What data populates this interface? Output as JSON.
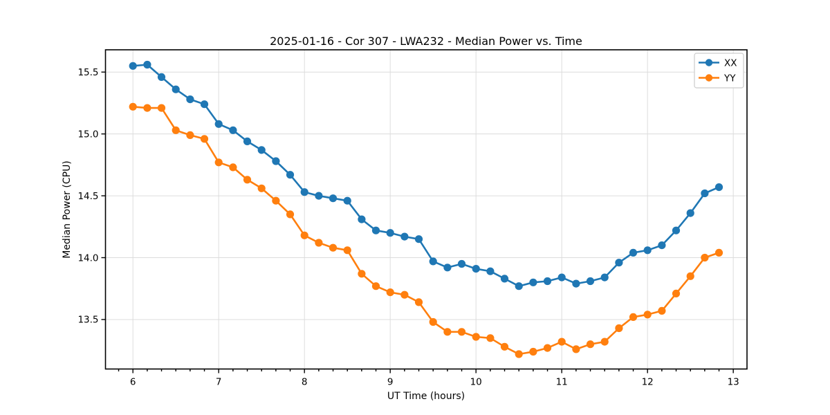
{
  "chart_data": {
    "type": "line",
    "title": "2025-01-16 - Cor 307 - LWA232 - Median Power vs. Time",
    "xlabel": "UT Time (hours)",
    "ylabel": "Median Power (CPU)",
    "grid": true,
    "legend_position": "upper right",
    "xlim": [
      5.68,
      13.16
    ],
    "ylim": [
      13.1,
      15.68
    ],
    "xticks": [
      6,
      7,
      8,
      9,
      10,
      11,
      12,
      13
    ],
    "xtick_labels": [
      "6",
      "7",
      "8",
      "9",
      "10",
      "11",
      "12",
      "13"
    ],
    "x_minor_step": 0.16667,
    "yticks": [
      13.5,
      14.0,
      14.5,
      15.0,
      15.5
    ],
    "ytick_labels": [
      "13.5",
      "14.0",
      "14.5",
      "15.0",
      "15.5"
    ],
    "x": [
      6.0,
      6.167,
      6.333,
      6.5,
      6.667,
      6.833,
      7.0,
      7.167,
      7.333,
      7.5,
      7.667,
      7.833,
      8.0,
      8.167,
      8.333,
      8.5,
      8.667,
      8.833,
      9.0,
      9.167,
      9.333,
      9.5,
      9.667,
      9.833,
      10.0,
      10.167,
      10.333,
      10.5,
      10.667,
      10.833,
      11.0,
      11.167,
      11.333,
      11.5,
      11.667,
      11.833,
      12.0,
      12.167,
      12.333,
      12.5,
      12.667,
      12.833
    ],
    "series": [
      {
        "name": "XX",
        "color": "#1f77b4",
        "values": [
          15.55,
          15.56,
          15.46,
          15.36,
          15.28,
          15.24,
          15.08,
          15.03,
          14.94,
          14.87,
          14.78,
          14.67,
          14.53,
          14.5,
          14.48,
          14.46,
          14.31,
          14.22,
          14.2,
          14.17,
          14.15,
          13.97,
          13.92,
          13.95,
          13.91,
          13.89,
          13.83,
          13.77,
          13.8,
          13.81,
          13.84,
          13.79,
          13.81,
          13.84,
          13.96,
          14.04,
          14.06,
          14.1,
          14.22,
          14.36,
          14.52,
          14.57
        ]
      },
      {
        "name": "YY",
        "color": "#ff7f0e",
        "values": [
          15.22,
          15.21,
          15.21,
          15.03,
          14.99,
          14.96,
          14.77,
          14.73,
          14.63,
          14.56,
          14.46,
          14.35,
          14.18,
          14.12,
          14.08,
          14.06,
          13.87,
          13.77,
          13.72,
          13.7,
          13.64,
          13.48,
          13.4,
          13.4,
          13.36,
          13.35,
          13.28,
          13.22,
          13.24,
          13.27,
          13.32,
          13.26,
          13.3,
          13.32,
          13.43,
          13.52,
          13.54,
          13.57,
          13.71,
          13.85,
          14.0,
          14.04
        ]
      }
    ],
    "style": {
      "grid_color": "#dcdcdc",
      "spine_color": "#000000",
      "background": "#ffffff"
    }
  }
}
